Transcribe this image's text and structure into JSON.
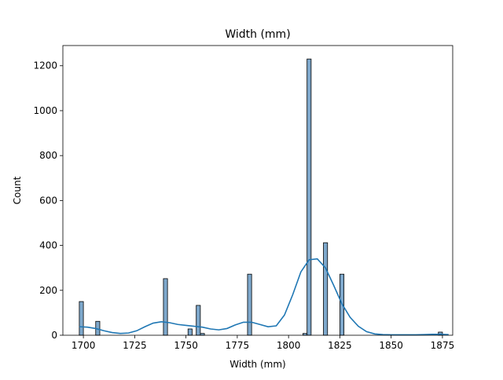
{
  "chart_data": {
    "type": "bar",
    "title": "Width (mm)",
    "xlabel": "Width (mm)",
    "ylabel": "Count",
    "xlim": [
      1690,
      1880
    ],
    "ylim": [
      0,
      1290
    ],
    "xticks": [
      1700,
      1725,
      1750,
      1775,
      1800,
      1825,
      1850,
      1875
    ],
    "yticks": [
      0,
      200,
      400,
      600,
      800,
      1000,
      1200
    ],
    "bin_width": 2,
    "bins": [
      {
        "x": 1698,
        "count": 150
      },
      {
        "x": 1706,
        "count": 62
      },
      {
        "x": 1739,
        "count": 252
      },
      {
        "x": 1751,
        "count": 28
      },
      {
        "x": 1755,
        "count": 133
      },
      {
        "x": 1757,
        "count": 8
      },
      {
        "x": 1780,
        "count": 272
      },
      {
        "x": 1807,
        "count": 8
      },
      {
        "x": 1809,
        "count": 1230
      },
      {
        "x": 1817,
        "count": 412
      },
      {
        "x": 1825,
        "count": 272
      },
      {
        "x": 1873,
        "count": 14
      }
    ],
    "kde": {
      "x": [
        1698,
        1702,
        1706,
        1710,
        1714,
        1718,
        1722,
        1726,
        1730,
        1734,
        1738,
        1742,
        1746,
        1750,
        1754,
        1758,
        1762,
        1766,
        1770,
        1774,
        1778,
        1782,
        1786,
        1790,
        1794,
        1798,
        1802,
        1806,
        1810,
        1814,
        1818,
        1822,
        1826,
        1830,
        1834,
        1838,
        1842,
        1846,
        1850,
        1854,
        1858,
        1862,
        1866,
        1870,
        1874,
        1878
      ],
      "y": [
        38,
        36,
        30,
        20,
        12,
        8,
        10,
        20,
        38,
        54,
        60,
        56,
        48,
        44,
        40,
        36,
        28,
        24,
        30,
        46,
        58,
        58,
        48,
        38,
        42,
        90,
        180,
        282,
        336,
        340,
        300,
        222,
        140,
        80,
        40,
        16,
        6,
        3,
        2,
        2,
        2,
        2,
        3,
        4,
        4,
        3
      ]
    },
    "bar_color": "#7ea8cc",
    "bar_edge_color": "#000000",
    "line_color": "#1f77b4",
    "grid": false,
    "legend": "none"
  }
}
